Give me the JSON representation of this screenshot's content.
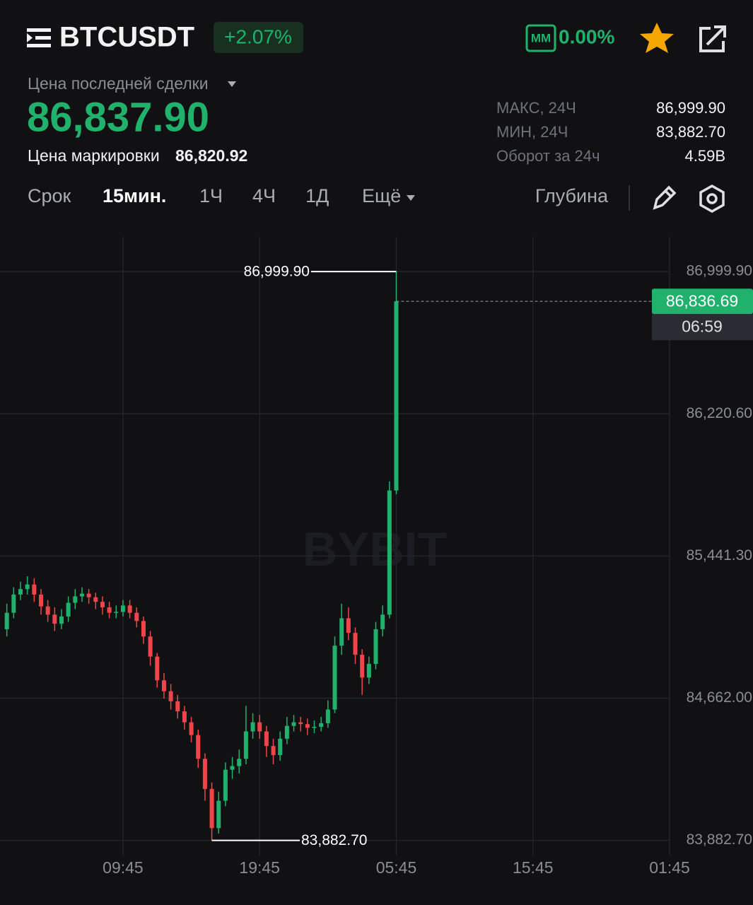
{
  "header": {
    "symbol": "BTCUSDT",
    "change": "+2.07%",
    "mm_badge": "MM",
    "mm_value": "0.00%"
  },
  "price": {
    "label": "Цена последней сделки",
    "value": "86,837.90",
    "mark_label": "Цена маркировки",
    "mark_value": "86,820.92"
  },
  "stats": [
    {
      "label": "МАКС, 24Ч",
      "value": "86,999.90"
    },
    {
      "label": "МИН, 24Ч",
      "value": "83,882.70"
    },
    {
      "label": "Оборот за 24ч",
      "value": "4.59B"
    }
  ],
  "tabs": [
    "Срок",
    "15мин.",
    "1Ч",
    "4Ч",
    "1Д",
    "Ещё",
    "Глубина"
  ],
  "chart_data": {
    "type": "candlestick",
    "watermark": "BYBIT",
    "up_color": "#20b26c",
    "down_color": "#ef454a",
    "grid": true,
    "x": [
      1.25,
      1.75,
      2.25,
      2.75,
      3.25,
      3.75,
      4.25,
      4.75,
      5.25,
      5.75,
      6.25,
      6.75,
      7.25,
      7.75,
      8.25,
      8.75,
      9.25,
      9.75,
      10.25,
      10.75,
      11.25,
      11.75,
      12.25,
      12.75,
      13.25,
      13.75,
      14.25,
      14.75,
      15.25,
      15.75,
      16.25,
      16.75,
      17.25,
      17.75,
      18.25,
      18.75,
      19.25,
      19.75,
      20.25,
      20.75,
      21.25,
      21.75,
      22.25,
      22.75,
      23.25,
      23.75,
      24.25,
      24.75,
      25.25,
      25.75,
      26.25,
      26.75,
      27.25,
      27.75,
      28.25,
      28.75,
      29.25,
      29.75
    ],
    "open": [
      85040,
      85130,
      85230,
      85260,
      85285,
      85230,
      85165,
      85120,
      85070,
      85110,
      85185,
      85220,
      85235,
      85215,
      85190,
      85160,
      85130,
      85135,
      85170,
      85130,
      85085,
      85000,
      84890,
      84760,
      84700,
      84645,
      84590,
      84530,
      84460,
      84330,
      84165,
      83950,
      84100,
      84270,
      84290,
      84330,
      84480,
      84530,
      84480,
      84400,
      84350,
      84440,
      84510,
      84530,
      84520,
      84500,
      84505,
      84525,
      84600,
      84950,
      85100,
      85020,
      84900,
      84775,
      84850,
      85040,
      85120,
      85800
    ],
    "high": [
      85180,
      85270,
      85300,
      85330,
      85320,
      85260,
      85200,
      85160,
      85150,
      85220,
      85260,
      85270,
      85260,
      85240,
      85220,
      85190,
      85170,
      85200,
      85200,
      85160,
      85110,
      85030,
      84910,
      84800,
      84740,
      84680,
      84620,
      84560,
      84490,
      84360,
      84200,
      84150,
      84310,
      84340,
      84380,
      84620,
      84580,
      84570,
      84510,
      84440,
      84480,
      84560,
      84570,
      84560,
      84550,
      84540,
      84560,
      84650,
      85000,
      85180,
      85160,
      85050,
      84930,
      84890,
      85080,
      85170,
      85850,
      86999.9
    ],
    "low": [
      85000,
      85100,
      85200,
      85230,
      85190,
      85120,
      85080,
      85030,
      85040,
      85080,
      85150,
      85190,
      85180,
      85150,
      85120,
      85100,
      85100,
      85110,
      85100,
      85050,
      84960,
      84840,
      84720,
      84660,
      84600,
      84550,
      84490,
      84420,
      84280,
      84100,
      83882.7,
      83920,
      84070,
      84220,
      84250,
      84300,
      84440,
      84440,
      84340,
      84300,
      84320,
      84410,
      84480,
      84480,
      84460,
      84470,
      84480,
      84500,
      84580,
      84900,
      84980,
      84850,
      84680,
      84740,
      84820,
      85000,
      85100,
      85780
    ],
    "close": [
      85130,
      85230,
      85260,
      85285,
      85230,
      85165,
      85120,
      85070,
      85110,
      85185,
      85220,
      85235,
      85215,
      85190,
      85160,
      85130,
      85135,
      85170,
      85130,
      85085,
      85000,
      84890,
      84760,
      84700,
      84645,
      84590,
      84530,
      84460,
      84330,
      84165,
      83950,
      84100,
      84270,
      84290,
      84330,
      84480,
      84530,
      84480,
      84400,
      84350,
      84440,
      84510,
      84530,
      84520,
      84500,
      84505,
      84525,
      84600,
      84950,
      85100,
      85020,
      84900,
      84775,
      84850,
      85040,
      85120,
      85800,
      86836.69
    ],
    "xlim": [
      0.75,
      49.8
    ],
    "ylim": [
      83800,
      87190
    ],
    "xticks": [
      {
        "value": 9.75,
        "label": "09:45"
      },
      {
        "value": 19.75,
        "label": "19:45"
      },
      {
        "value": 29.75,
        "label": "05:45"
      },
      {
        "value": 39.75,
        "label": "15:45"
      },
      {
        "value": 49.75,
        "label": "01:45"
      }
    ],
    "yticks": [
      {
        "value": 83882.7,
        "label": "83,882.70"
      },
      {
        "value": 84662.0,
        "label": "84,662.00"
      },
      {
        "value": 85441.3,
        "label": "85,441.30"
      },
      {
        "value": 86220.6,
        "label": "86,220.60"
      },
      {
        "value": 86999.9,
        "label": "86,999.90"
      }
    ],
    "max_label": {
      "value": 86999.9,
      "label": "86,999.90"
    },
    "min_label": {
      "value": 83882.7,
      "label": "83,882.70"
    },
    "last_price": {
      "value": 86836.69,
      "label": "86,836.69"
    },
    "countdown": "06:59"
  }
}
